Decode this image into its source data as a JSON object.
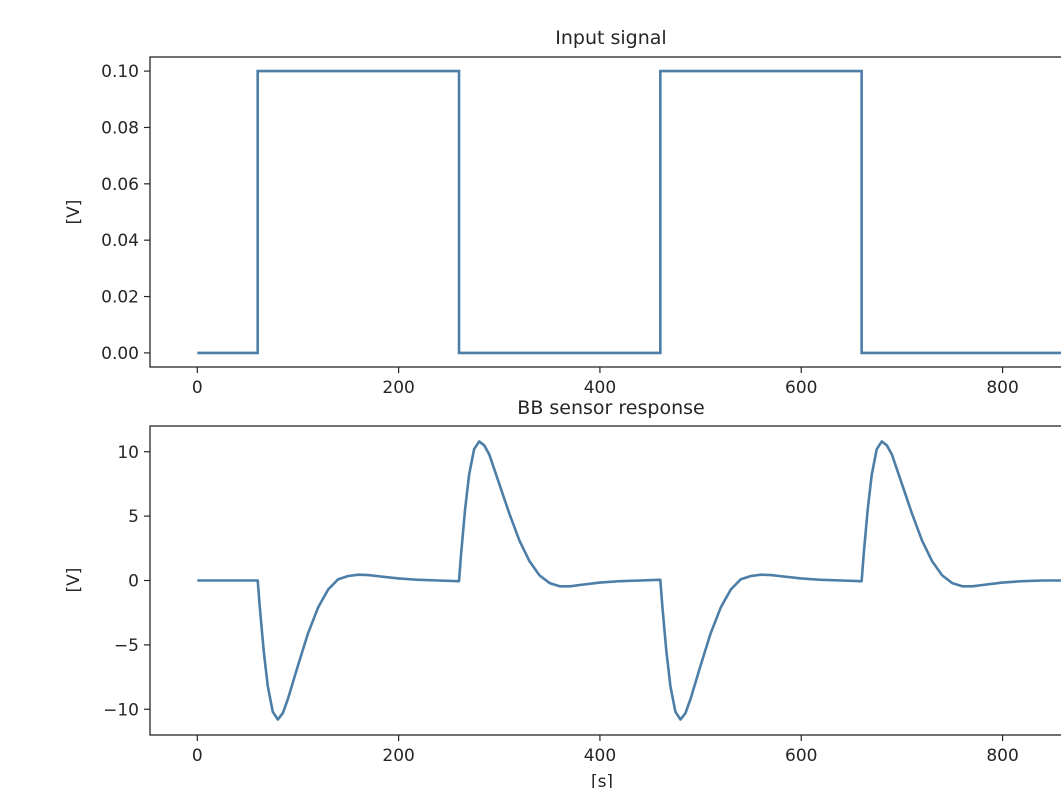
{
  "colors": {
    "line": "#4c7ea8",
    "axes": "#262626",
    "background": "#ffffff"
  },
  "chart_data": [
    {
      "type": "line",
      "title": "Input signal",
      "xlabel": "",
      "ylabel": "[V]",
      "xlim": [
        -47,
        867
      ],
      "ylim": [
        -0.005,
        0.105
      ],
      "xticks": [
        0,
        200,
        400,
        600,
        800
      ],
      "xtick_labels": [
        "0",
        "200",
        "400",
        "600",
        "800"
      ],
      "yticks": [
        0.0,
        0.02,
        0.04,
        0.06,
        0.08,
        0.1
      ],
      "ytick_labels": [
        "0.00",
        "0.02",
        "0.04",
        "0.06",
        "0.08",
        "0.10"
      ],
      "grid": false,
      "series": [
        {
          "x": [
            0,
            60,
            60,
            260,
            260,
            460,
            460,
            660,
            660,
            867
          ],
          "values": [
            0,
            0,
            0.1,
            0.1,
            0,
            0,
            0.1,
            0.1,
            0,
            0
          ]
        }
      ]
    },
    {
      "type": "line",
      "title": "BB sensor response",
      "xlabel": "[s]",
      "ylabel": "[V]",
      "xlim": [
        -47,
        867
      ],
      "ylim": [
        -12,
        12
      ],
      "xticks": [
        0,
        200,
        400,
        600,
        800
      ],
      "xtick_labels": [
        "0",
        "200",
        "400",
        "600",
        "800"
      ],
      "yticks": [
        -10,
        -5,
        0,
        5,
        10
      ],
      "ytick_labels": [
        "−10",
        "−5",
        "0",
        "5",
        "10"
      ],
      "grid": false,
      "series": [
        {
          "x": [
            0,
            60,
            62,
            66,
            70,
            75,
            80,
            85,
            90,
            100,
            110,
            120,
            130,
            140,
            150,
            160,
            170,
            180,
            200,
            220,
            240,
            259,
            260,
            262,
            266,
            270,
            275,
            280,
            285,
            290,
            300,
            310,
            320,
            330,
            340,
            350,
            360,
            370,
            380,
            400,
            420,
            440,
            459,
            460,
            462,
            466,
            470,
            475,
            480,
            485,
            490,
            500,
            510,
            520,
            530,
            540,
            550,
            560,
            570,
            580,
            600,
            620,
            640,
            659,
            660,
            662,
            666,
            670,
            675,
            680,
            685,
            690,
            700,
            710,
            720,
            730,
            740,
            750,
            760,
            770,
            780,
            800,
            820,
            840,
            867
          ],
          "values": [
            0,
            0,
            -2,
            -5.5,
            -8.2,
            -10.2,
            -10.8,
            -10.3,
            -9.2,
            -6.6,
            -4.1,
            -2.1,
            -0.7,
            0.1,
            0.35,
            0.45,
            0.42,
            0.33,
            0.16,
            0.05,
            0,
            -0.05,
            -0.05,
            2,
            5.5,
            8.2,
            10.2,
            10.8,
            10.5,
            9.8,
            7.5,
            5.2,
            3.1,
            1.5,
            0.4,
            -0.2,
            -0.45,
            -0.45,
            -0.35,
            -0.16,
            -0.05,
            0,
            0.05,
            0.05,
            -2,
            -5.5,
            -8.2,
            -10.2,
            -10.8,
            -10.3,
            -9.2,
            -6.6,
            -4.1,
            -2.1,
            -0.7,
            0.1,
            0.35,
            0.45,
            0.42,
            0.33,
            0.16,
            0.05,
            0,
            -0.05,
            -0.05,
            2,
            5.5,
            8.2,
            10.2,
            10.8,
            10.5,
            9.8,
            7.5,
            5.2,
            3.1,
            1.5,
            0.4,
            -0.2,
            -0.45,
            -0.45,
            -0.35,
            -0.16,
            -0.05,
            0,
            0
          ]
        }
      ]
    }
  ]
}
